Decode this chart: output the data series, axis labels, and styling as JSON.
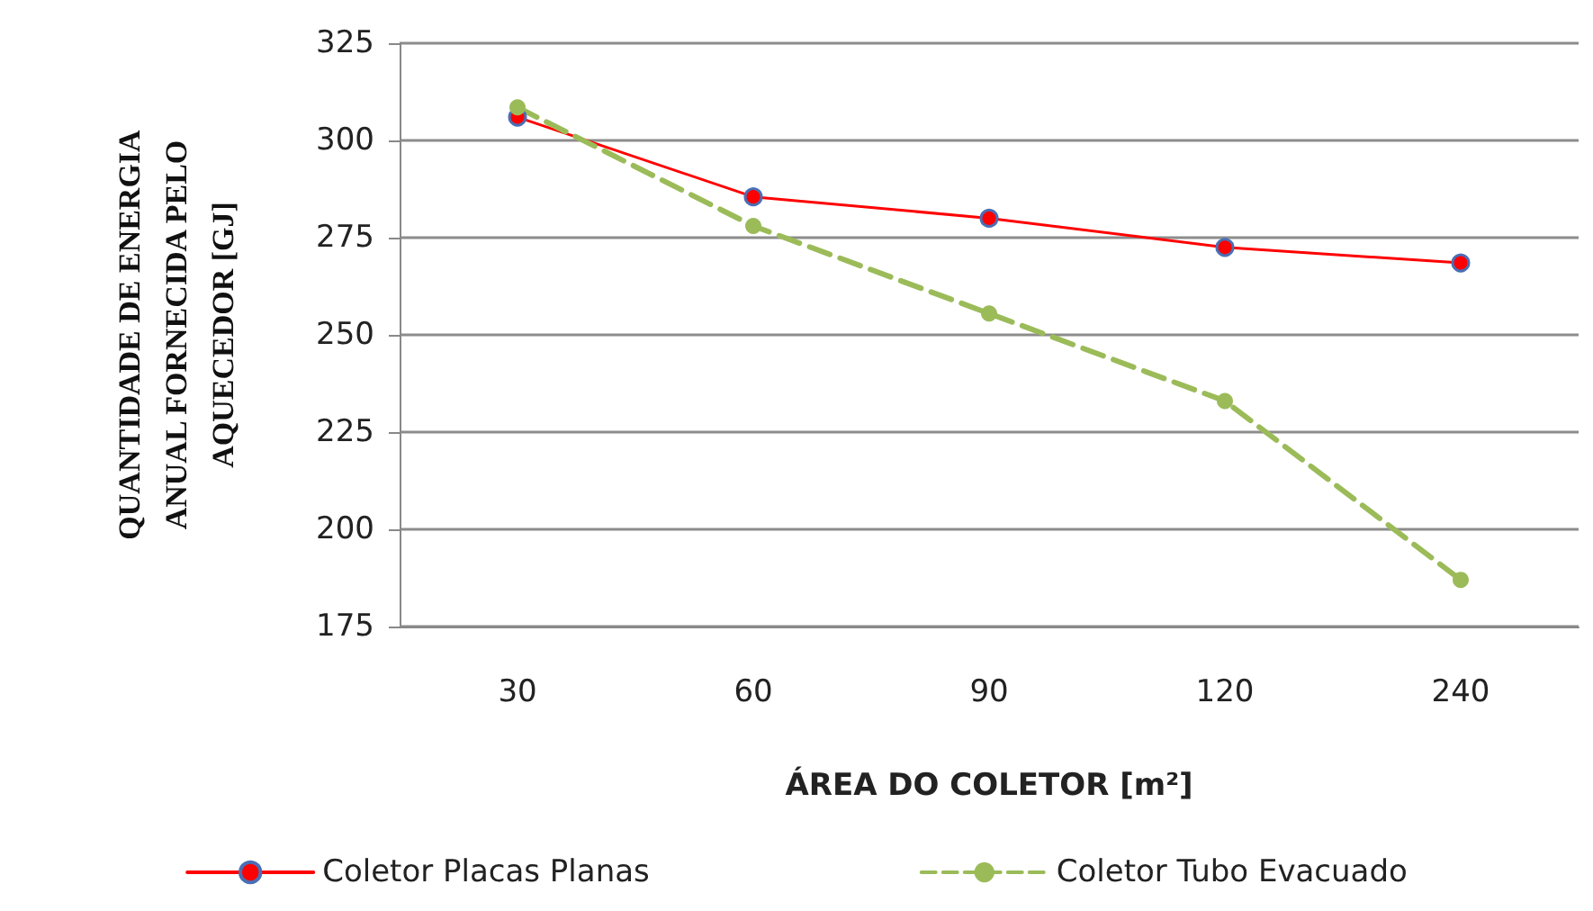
{
  "chart_data": {
    "type": "line",
    "xlabel": "ÁREA DO COLETOR [m²]",
    "ylabel": "QUANTIDADE DE ENERGIA\nANUAL FORNECIDA PELO\nAQUECEDOR [GJ]",
    "categories": [
      "30",
      "60",
      "90",
      "120",
      "240"
    ],
    "series": [
      {
        "name": "Coletor Placas Planas",
        "color": "#ff0000",
        "values": [
          306,
          285.5,
          280,
          272.5,
          268.5
        ],
        "line_style": "solid"
      },
      {
        "name": "Coletor Tubo Evacuado",
        "color": "#9bbb59",
        "values": [
          308.5,
          278,
          255.5,
          233,
          187
        ],
        "line_style": "dashed"
      }
    ],
    "ylim": [
      175,
      325
    ],
    "yticks": [
      175,
      200,
      225,
      250,
      275,
      300,
      325
    ],
    "grid": "y",
    "legend": "bottom",
    "marker": "circle"
  }
}
